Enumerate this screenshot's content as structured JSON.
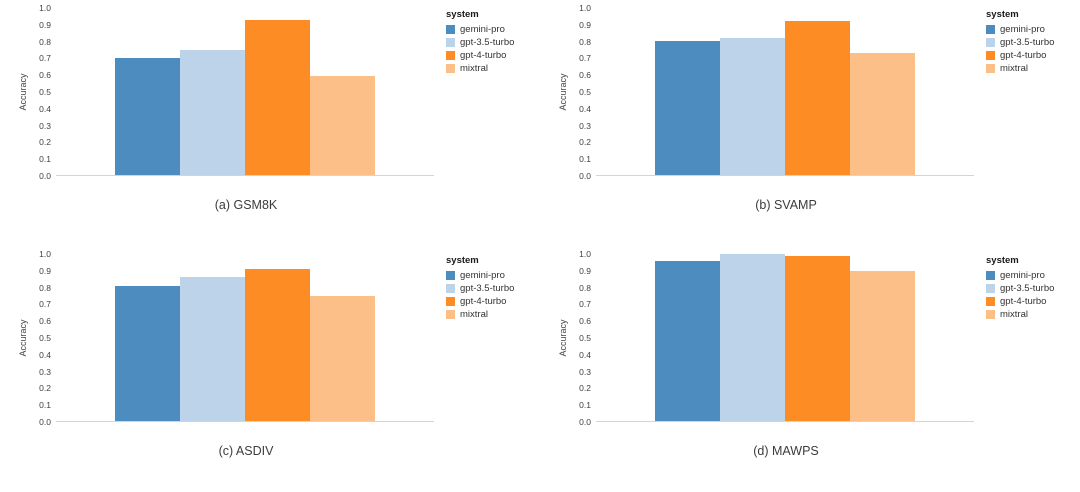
{
  "page": {
    "background": "#ffffff"
  },
  "chart_data": [
    {
      "type": "bar",
      "caption": "(a) GSM8K",
      "categories": [
        "gemini-pro",
        "gpt-3.5-turbo",
        "gpt-4-turbo",
        "mixtral"
      ],
      "values": [
        0.7,
        0.75,
        0.93,
        0.59
      ],
      "colors": [
        "#4c8cbe",
        "#bdd3ea",
        "#fd8c24",
        "#fcbf87"
      ],
      "ylabel": "Accuracy",
      "ylim": [
        0,
        1
      ],
      "yticks": [
        "1.0",
        "0.9",
        "0.8",
        "0.7",
        "0.6",
        "0.5",
        "0.4",
        "0.3",
        "0.2",
        "0.1",
        "0.0"
      ],
      "grid": false,
      "legend": {
        "title": "system",
        "position": "right",
        "entries": [
          {
            "label": "gemini-pro",
            "color": "#4c8cbe"
          },
          {
            "label": "gpt-3.5-turbo",
            "color": "#bdd3ea"
          },
          {
            "label": "gpt-4-turbo",
            "color": "#fd8c24"
          },
          {
            "label": "mixtral",
            "color": "#fcbf87"
          }
        ]
      }
    },
    {
      "type": "bar",
      "caption": "(b) SVAMP",
      "categories": [
        "gemini-pro",
        "gpt-3.5-turbo",
        "gpt-4-turbo",
        "mixtral"
      ],
      "values": [
        0.8,
        0.82,
        0.92,
        0.73
      ],
      "colors": [
        "#4c8cbe",
        "#bdd3ea",
        "#fd8c24",
        "#fcbf87"
      ],
      "ylabel": "Accuracy",
      "ylim": [
        0,
        1
      ],
      "yticks": [
        "1.0",
        "0.9",
        "0.8",
        "0.7",
        "0.6",
        "0.5",
        "0.4",
        "0.3",
        "0.2",
        "0.1",
        "0.0"
      ],
      "grid": false,
      "legend": {
        "title": "system",
        "position": "right",
        "entries": [
          {
            "label": "gemini-pro",
            "color": "#4c8cbe"
          },
          {
            "label": "gpt-3.5-turbo",
            "color": "#bdd3ea"
          },
          {
            "label": "gpt-4-turbo",
            "color": "#fd8c24"
          },
          {
            "label": "mixtral",
            "color": "#fcbf87"
          }
        ]
      }
    },
    {
      "type": "bar",
      "caption": "(c) ASDIV",
      "categories": [
        "gemini-pro",
        "gpt-3.5-turbo",
        "gpt-4-turbo",
        "mixtral"
      ],
      "values": [
        0.81,
        0.86,
        0.91,
        0.75
      ],
      "colors": [
        "#4c8cbe",
        "#bdd3ea",
        "#fd8c24",
        "#fcbf87"
      ],
      "ylabel": "Accuracy",
      "ylim": [
        0,
        1
      ],
      "yticks": [
        "1.0",
        "0.9",
        "0.8",
        "0.7",
        "0.6",
        "0.5",
        "0.4",
        "0.3",
        "0.2",
        "0.1",
        "0.0"
      ],
      "grid": false,
      "legend": {
        "title": "system",
        "position": "right",
        "entries": [
          {
            "label": "gemini-pro",
            "color": "#4c8cbe"
          },
          {
            "label": "gpt-3.5-turbo",
            "color": "#bdd3ea"
          },
          {
            "label": "gpt-4-turbo",
            "color": "#fd8c24"
          },
          {
            "label": "mixtral",
            "color": "#fcbf87"
          }
        ]
      }
    },
    {
      "type": "bar",
      "caption": "(d) MAWPS",
      "categories": [
        "gemini-pro",
        "gpt-3.5-turbo",
        "gpt-4-turbo",
        "mixtral"
      ],
      "values": [
        0.96,
        1.0,
        0.99,
        0.9
      ],
      "colors": [
        "#4c8cbe",
        "#bdd3ea",
        "#fd8c24",
        "#fcbf87"
      ],
      "ylabel": "Accuracy",
      "ylim": [
        0,
        1
      ],
      "yticks": [
        "1.0",
        "0.9",
        "0.8",
        "0.7",
        "0.6",
        "0.5",
        "0.4",
        "0.3",
        "0.2",
        "0.1",
        "0.0"
      ],
      "grid": false,
      "legend": {
        "title": "system",
        "position": "right",
        "entries": [
          {
            "label": "gemini-pro",
            "color": "#4c8cbe"
          },
          {
            "label": "gpt-3.5-turbo",
            "color": "#bdd3ea"
          },
          {
            "label": "gpt-4-turbo",
            "color": "#fd8c24"
          },
          {
            "label": "mixtral",
            "color": "#fcbf87"
          }
        ]
      }
    }
  ]
}
